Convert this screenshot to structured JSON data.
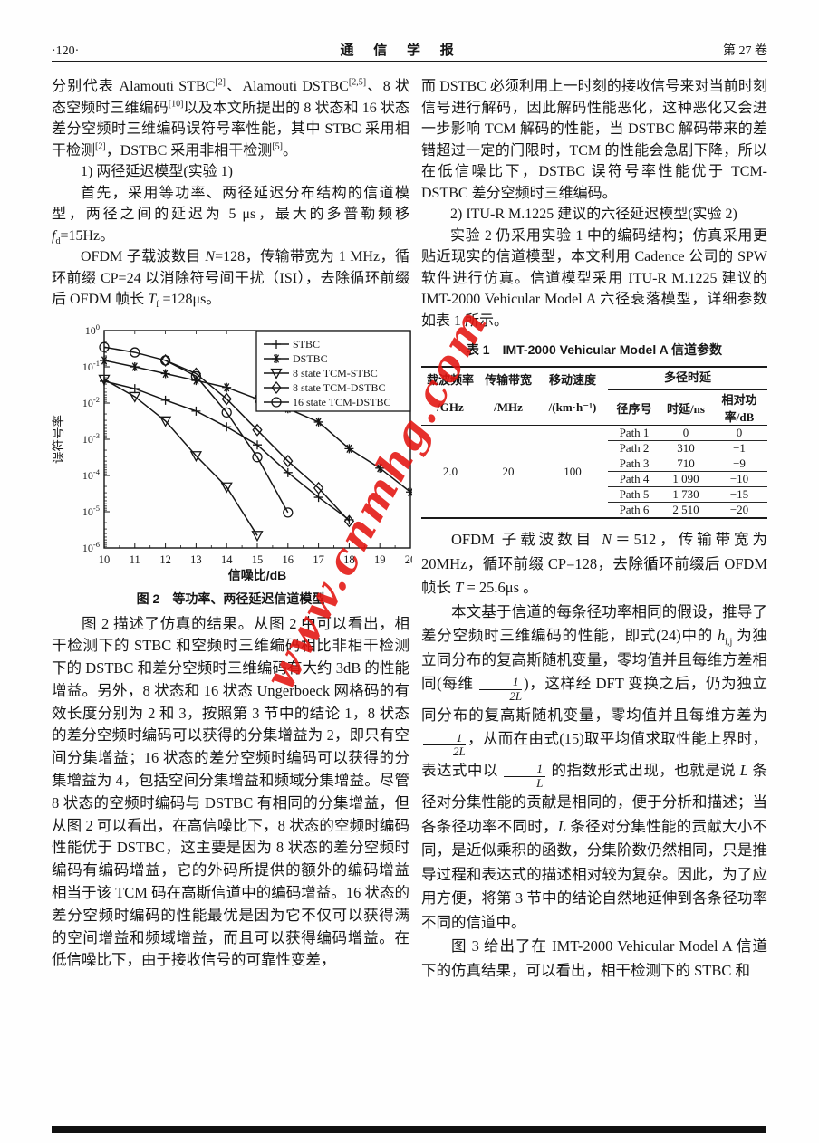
{
  "header": {
    "page_number": "·120·",
    "journal": "通 信 学 报",
    "volume": "第 27 卷"
  },
  "watermark": {
    "text": "www.cnmhg.com",
    "color": "#e31410"
  },
  "left_column": {
    "p1": [
      {
        "t": "分别代表 Alamouti STBC"
      },
      {
        "sup": "[2]"
      },
      {
        "t": "、Alamouti DSTBC"
      },
      {
        "sup": "[2,5]"
      },
      {
        "t": "、8 状态空频时三维编码"
      },
      {
        "sup": "[10]"
      },
      {
        "t": "以及本文所提出的 8 状态和 16 状态差分空频时三维编码误符号率性能，其中 STBC 采用相干检测"
      },
      {
        "sup": "[2]"
      },
      {
        "t": "，DSTBC 采用非相干检测"
      },
      {
        "sup": "[5]"
      },
      {
        "t": "。"
      }
    ],
    "h1": "1) 两径延迟模型(实验 1)",
    "p2": [
      {
        "t": "首先，采用等功率、两径延迟分布结构的信道模型，两径之间的延迟为 5 μs，最大的多普勒频移"
      },
      {
        "i": "f"
      },
      {
        "sub": "d"
      },
      {
        "t": "=15Hz。"
      }
    ],
    "p3": [
      {
        "t": "OFDM 子载波数目 "
      },
      {
        "i": "N"
      },
      {
        "t": "=128，传输带宽为 1 MHz，循环前缀 CP=24 以消除符号间干扰（ISI），去除循环前缀后 OFDM 帧长 "
      },
      {
        "i": "T"
      },
      {
        "sub": "f"
      },
      {
        "t": " =128μs。"
      }
    ],
    "figure": {
      "caption": "图 2　等功率、两径延迟信道模型"
    },
    "p4": [
      {
        "t": "图 2 描述了仿真的结果。从图 2 中可以看出，相干检测下的 STBC 和空频时三维编码相比非相干检测下的 DSTBC 和差分空频时三维编码有大约 3dB 的性能增益。另外，8 状态和 16 状态 Ungerboeck 网格码的有效长度分别为 2 和 3，按照第 3 节中的结论 1，8 状态的差分空频时编码可以获得的分集增益为 2，即只有空间分集增益；16 状态的差分空频时编码可以获得的分集增益为 4，包括空间分集增益和频域分集增益。尽管 8 状态的空频时编码与 DSTBC 有相同的分集增益，但从图 2 可以看出，在高信噪比下，8 状态的空频时编码性能优于 DSTBC，这主要是因为 8 状态的差分空频时编码有编码增益，它的外码所提供的额外的编码增益相当于该 TCM 码在高斯信道中的编码增益。16 状态的差分空频时编码的性能最优是因为它不仅可以获得满的空间增益和频域增益，而且可以获得编码增益。在低信噪比下，由于接收信号的可靠性变差，"
      }
    ]
  },
  "right_column": {
    "p1": [
      {
        "t": "而 DSTBC 必须利用上一时刻的接收信号来对当前时刻信号进行解码，因此解码性能恶化，这种恶化又会进一步影响 TCM 解码的性能，当 DSTBC 解码带来的差错超过一定的门限时，TCM 的性能会急剧下降，所以在低信噪比下，DSTBC 误符号率性能优于 TCM-DSTBC 差分空频时三维编码。"
      }
    ],
    "h1": "2) ITU-R M.1225 建议的六径延迟模型(实验 2)",
    "p2": [
      {
        "t": "实验 2 仍采用实验 1 中的编码结构；仿真采用更贴近现实的信道模型，本文利用 Cadence 公司的 SPW 软件进行仿真。信道模型采用 ITU-R M.1225 建议的 IMT-2000 Vehicular Model A 六径衰落模型，详细参数如表 1 所示。"
      }
    ],
    "table": {
      "title": "表 1　IMT-2000 Vehicular Model A 信道参数",
      "headers": {
        "carrier": [
          "载波频率",
          "/GHz"
        ],
        "bandwidth": [
          "传输带宽",
          "/MHz"
        ],
        "speed": [
          "移动速度",
          "/(km·h⁻¹)"
        ],
        "multipath": "多径时延",
        "path_no": "径序号",
        "delay": "时延/ns",
        "power": "相对功率/dB"
      },
      "carrier_value": "2.0",
      "bandwidth_value": "20",
      "speed_value": "100",
      "paths": [
        {
          "name": "Path 1",
          "delay": "0",
          "power": "0"
        },
        {
          "name": "Path 2",
          "delay": "310",
          "power": "−1"
        },
        {
          "name": "Path 3",
          "delay": "710",
          "power": "−9"
        },
        {
          "name": "Path 4",
          "delay": "1 090",
          "power": "−10"
        },
        {
          "name": "Path 5",
          "delay": "1 730",
          "power": "−15"
        },
        {
          "name": "Path 6",
          "delay": "2 510",
          "power": "−20"
        }
      ]
    },
    "p3": [
      {
        "t": "OFDM 子载波数目 "
      },
      {
        "i": "N"
      },
      {
        "t": "＝512，传输带宽为 20MHz，循环前缀 CP=128，去除循环前缀后 OFDM 帧长 "
      },
      {
        "i": "T"
      },
      {
        "t": " = 25.6μs 。"
      }
    ],
    "p4": [
      {
        "t": "本文基于信道的每条径功率相同的假设，推导了差分空频时三维编码的性能，即式(24)中的 "
      },
      {
        "i": "h"
      },
      {
        "sub": "i,j"
      },
      {
        "t": " 为独立同分布的复高斯随机变量，零均值并且每维方差相同(每维 "
      },
      {
        "frac": [
          "1",
          "2L"
        ]
      },
      {
        "t": ")，这样经 DFT 变换之后，仍为独立同分布的复高斯随机变量，零均值并且每维方差为 "
      },
      {
        "frac": [
          "1",
          "2L"
        ]
      },
      {
        "t": "，从而在由式(15)取平均值求取性能上界时，表达式中以 "
      },
      {
        "frac": [
          "1",
          "L"
        ]
      },
      {
        "t": " 的指数形式出现，也就是说 "
      },
      {
        "i": "L"
      },
      {
        "t": " 条径对分集性能的贡献是相同的，便于分析和描述；当各条径功率不同时，"
      },
      {
        "i": "L"
      },
      {
        "t": " 条径对分集性能的贡献大小不同，是近似乘积的函数，分集阶数仍然相同，只是推导过程和表达式的描述相对较为复杂。因此，为了应用方便，将第 3 节中的结论自然地延伸到各条径功率不同的信道中。"
      }
    ],
    "p5": [
      {
        "t": "图 3 给出了在 IMT-2000 Vehicular Model A 信道下的仿真结果，可以看出，相干检测下的 STBC 和"
      }
    ]
  },
  "chart_data": {
    "type": "line",
    "xlabel": "信噪比/dB",
    "ylabel": "误符号率",
    "xlim": [
      10,
      20
    ],
    "y_log_decades": [
      0,
      -6
    ],
    "grid": false,
    "legend_position": "top-right",
    "series": [
      {
        "name": "STBC",
        "marker": "plus",
        "x": [
          10,
          11,
          12,
          13,
          14,
          15,
          16,
          17,
          18
        ],
        "y": [
          0.04,
          0.025,
          0.012,
          0.006,
          0.0022,
          0.0007,
          0.00012,
          2.5e-05,
          6e-06
        ]
      },
      {
        "name": "DSTBC",
        "marker": "asterisk",
        "x": [
          10,
          11,
          12,
          13,
          14,
          15,
          16,
          17,
          18,
          19,
          20
        ],
        "y": [
          0.15,
          0.1,
          0.065,
          0.042,
          0.027,
          0.013,
          0.007,
          0.003,
          0.00055,
          0.00016,
          3.5e-05
        ]
      },
      {
        "name": "8 state TCM-STBC",
        "marker": "triangle-down",
        "x": [
          10,
          11,
          12,
          13,
          14,
          15
        ],
        "y": [
          0.045,
          0.015,
          0.0032,
          0.00035,
          4.8e-05,
          2.2e-06
        ]
      },
      {
        "name": "8 state TCM-DSTBC",
        "marker": "diamond",
        "x": [
          12,
          13,
          14,
          15,
          16,
          17,
          18
        ],
        "y": [
          0.15,
          0.065,
          0.013,
          0.0018,
          0.00025,
          4.5e-05,
          5.5e-06
        ]
      },
      {
        "name": "16 state TCM-DSTBC",
        "marker": "circle",
        "x": [
          10,
          11,
          12,
          13,
          14,
          15,
          16
        ],
        "y": [
          0.35,
          0.25,
          0.15,
          0.055,
          0.0055,
          0.00032,
          9.5e-06
        ]
      }
    ]
  }
}
